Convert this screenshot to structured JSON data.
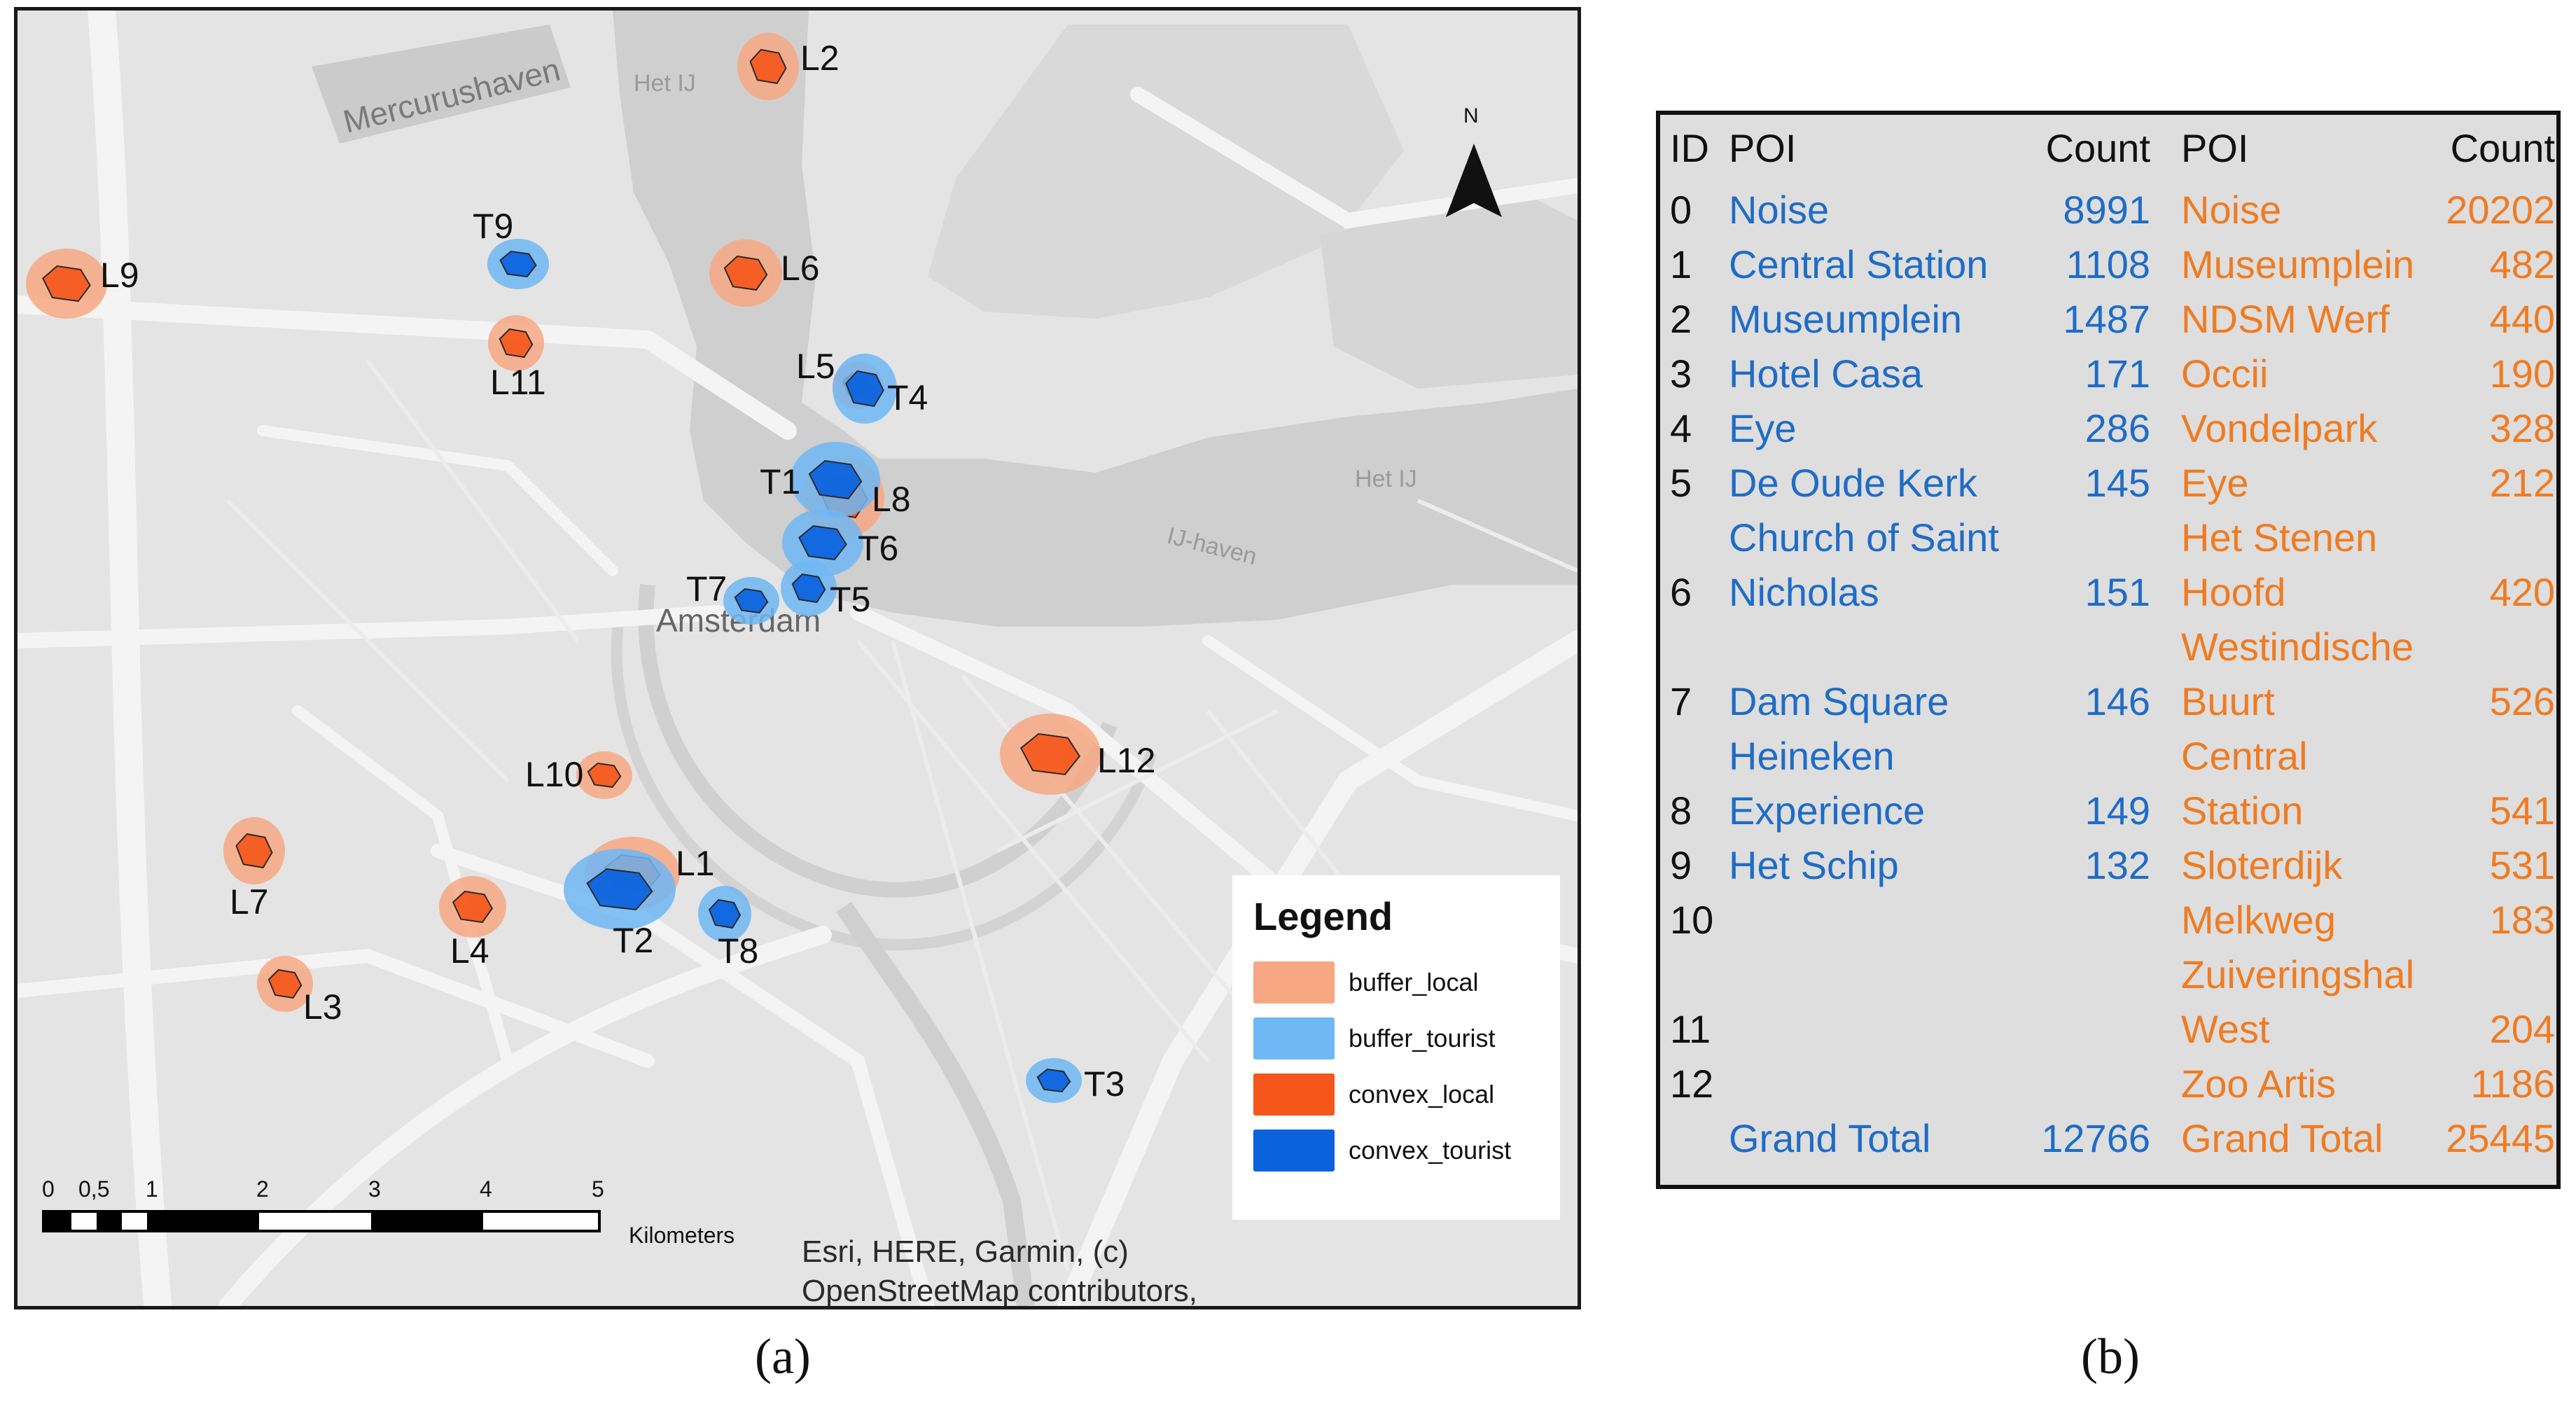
{
  "map": {
    "place_labels": [
      "Mercurushaven",
      "Het IJ",
      "Het IJ",
      "IJ-haven"
    ],
    "city": "Amsterdam",
    "north_label": "N",
    "markers": {
      "L1": "L1",
      "L2": "L2",
      "L3": "L3",
      "L4": "L4",
      "L5": "L5",
      "L6": "L6",
      "L7": "L7",
      "L8": "L8",
      "L9": "L9",
      "L10": "L10",
      "L11": "L11",
      "L12": "L12",
      "T1": "T1",
      "T2": "T2",
      "T3": "T3",
      "T4": "T4",
      "T5": "T5",
      "T6": "T6",
      "T7": "T7",
      "T8": "T8",
      "T9": "T9"
    },
    "legend": {
      "title": "Legend",
      "items": [
        {
          "label": "buffer_local",
          "color": "#f7a882"
        },
        {
          "label": "buffer_tourist",
          "color": "#6fb7f5"
        },
        {
          "label": "convex_local",
          "color": "#f5561a"
        },
        {
          "label": "convex_tourist",
          "color": "#0a62dd"
        }
      ]
    },
    "scale": {
      "ticks": [
        "0",
        "0,5",
        "1",
        "2",
        "3",
        "4",
        "5"
      ],
      "unit": "Kilometers"
    },
    "attribution": [
      "Esri, HERE, Garmin, (c)",
      "OpenStreetMap contributors,"
    ],
    "colors": {
      "buffer_local": "#f7a882",
      "buffer_tourist": "#6fb7f5",
      "convex_local": "#f5561a",
      "convex_tourist": "#0a62dd"
    }
  },
  "table": {
    "headers": {
      "id": "ID",
      "poi_tourist": "POI",
      "count_tourist": "Count",
      "poi_local": "POI",
      "count_local": "Count"
    },
    "rows": [
      {
        "id": "0",
        "t_poi": [
          "Noise"
        ],
        "t_count": "8991",
        "l_poi": [
          "Noise"
        ],
        "l_count": "20202"
      },
      {
        "id": "1",
        "t_poi": [
          "Central Station"
        ],
        "t_count": "1108",
        "l_poi": [
          "Museumplein"
        ],
        "l_count": "482"
      },
      {
        "id": "2",
        "t_poi": [
          "Museumplein"
        ],
        "t_count": "1487",
        "l_poi": [
          "NDSM Werf"
        ],
        "l_count": "440"
      },
      {
        "id": "3",
        "t_poi": [
          "Hotel Casa"
        ],
        "t_count": "171",
        "l_poi": [
          "Occii"
        ],
        "l_count": "190"
      },
      {
        "id": "4",
        "t_poi": [
          "Eye"
        ],
        "t_count": "286",
        "l_poi": [
          "Vondelpark"
        ],
        "l_count": "328"
      },
      {
        "id": "5",
        "t_poi": [
          "De Oude Kerk"
        ],
        "t_count": "145",
        "l_poi": [
          "Eye"
        ],
        "l_count": "212"
      },
      {
        "id": "6",
        "t_poi": [
          "Church of Saint",
          "Nicholas"
        ],
        "t_count": "151",
        "l_poi": [
          "Het Stenen",
          "Hoofd"
        ],
        "l_count": "420"
      },
      {
        "id": "7",
        "t_poi": [
          "Dam Square"
        ],
        "t_count": "146",
        "l_poi": [
          "Westindische",
          "Buurt"
        ],
        "l_count": "526"
      },
      {
        "id": "8",
        "t_poi": [
          "Heineken",
          "Experience"
        ],
        "t_count": "149",
        "l_poi": [
          "Central",
          "Station"
        ],
        "l_count": "541"
      },
      {
        "id": "9",
        "t_poi": [
          "Het Schip"
        ],
        "t_count": "132",
        "l_poi": [
          "Sloterdijk"
        ],
        "l_count": "531"
      },
      {
        "id": "10",
        "t_poi": [],
        "t_count": "",
        "l_poi": [
          "Melkweg"
        ],
        "l_count": "183"
      },
      {
        "id": "11",
        "t_poi": [],
        "t_count": "",
        "l_poi": [
          "Zuiveringshal",
          "West"
        ],
        "l_count": "204"
      },
      {
        "id": "12",
        "t_poi": [],
        "t_count": "",
        "l_poi": [
          "Zoo Artis"
        ],
        "l_count": "1186"
      }
    ],
    "total": {
      "t_label": "Grand Total",
      "t_count": "12766",
      "l_label": "Grand Total",
      "l_count": "25445"
    }
  },
  "captions": {
    "a": "(a)",
    "b": "(b)"
  }
}
